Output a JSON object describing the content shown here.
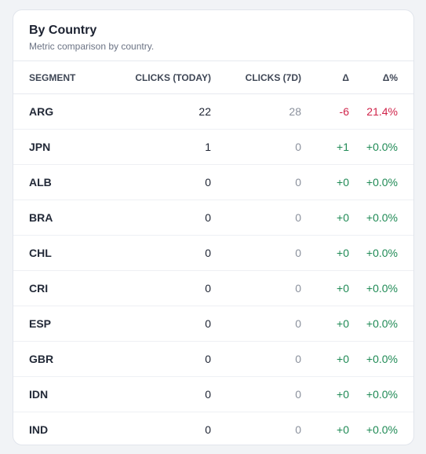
{
  "card": {
    "title": "By Country",
    "subtitle": "Metric comparison by country."
  },
  "table": {
    "headers": {
      "segment": "SEGMENT",
      "today": "CLICKS (TODAY)",
      "week": "CLICKS (7D)",
      "delta": "Δ",
      "delta_pct": "Δ%"
    },
    "rows": [
      {
        "segment": "ARG",
        "today": "22",
        "week": "28",
        "delta": "-6",
        "delta_pct": "21.4%",
        "trend": "neg"
      },
      {
        "segment": "JPN",
        "today": "1",
        "week": "0",
        "delta": "+1",
        "delta_pct": "+0.0%",
        "trend": "pos"
      },
      {
        "segment": "ALB",
        "today": "0",
        "week": "0",
        "delta": "+0",
        "delta_pct": "+0.0%",
        "trend": "pos"
      },
      {
        "segment": "BRA",
        "today": "0",
        "week": "0",
        "delta": "+0",
        "delta_pct": "+0.0%",
        "trend": "pos"
      },
      {
        "segment": "CHL",
        "today": "0",
        "week": "0",
        "delta": "+0",
        "delta_pct": "+0.0%",
        "trend": "pos"
      },
      {
        "segment": "CRI",
        "today": "0",
        "week": "0",
        "delta": "+0",
        "delta_pct": "+0.0%",
        "trend": "pos"
      },
      {
        "segment": "ESP",
        "today": "0",
        "week": "0",
        "delta": "+0",
        "delta_pct": "+0.0%",
        "trend": "pos"
      },
      {
        "segment": "GBR",
        "today": "0",
        "week": "0",
        "delta": "+0",
        "delta_pct": "+0.0%",
        "trend": "pos"
      },
      {
        "segment": "IDN",
        "today": "0",
        "week": "0",
        "delta": "+0",
        "delta_pct": "+0.0%",
        "trend": "pos"
      },
      {
        "segment": "IND",
        "today": "0",
        "week": "0",
        "delta": "+0",
        "delta_pct": "+0.0%",
        "trend": "pos"
      }
    ]
  },
  "colors": {
    "positive": "#1f8a55",
    "negative": "#d0244a"
  }
}
